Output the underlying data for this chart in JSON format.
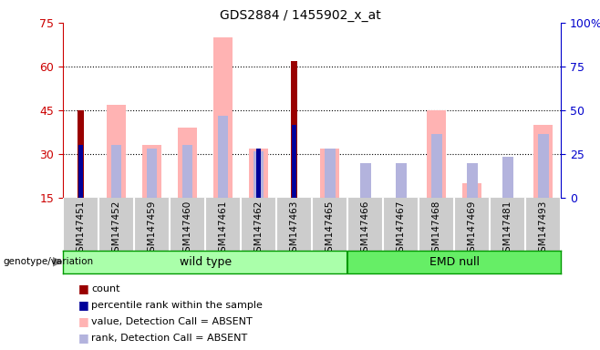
{
  "title": "GDS2884 / 1455902_x_at",
  "samples": [
    "GSM147451",
    "GSM147452",
    "GSM147459",
    "GSM147460",
    "GSM147461",
    "GSM147462",
    "GSM147463",
    "GSM147465",
    "GSM147466",
    "GSM147467",
    "GSM147468",
    "GSM147469",
    "GSM147481",
    "GSM147493"
  ],
  "wild_type_count": 8,
  "emd_null_count": 6,
  "count_values": [
    45,
    0,
    0,
    0,
    0,
    0,
    62,
    0,
    0,
    0,
    0,
    0,
    0,
    0
  ],
  "percentile_rank_values": [
    33,
    0,
    0,
    0,
    0,
    32,
    40,
    0,
    0,
    0,
    0,
    0,
    0,
    0
  ],
  "value_absent_values": [
    0,
    47,
    33,
    39,
    70,
    32,
    0,
    32,
    15,
    0,
    45,
    20,
    0,
    40
  ],
  "rank_absent_values": [
    0,
    33,
    32,
    33,
    43,
    31,
    0,
    32,
    27,
    27,
    37,
    27,
    29,
    37
  ],
  "ymin": 15,
  "ymax": 75,
  "yticks_left": [
    15,
    30,
    45,
    60,
    75
  ],
  "yticks_right_vals": [
    15,
    30,
    45,
    60,
    75
  ],
  "yticks_right_labels": [
    "0",
    "25",
    "50",
    "75",
    "100%"
  ],
  "dotted_lines": [
    30,
    45,
    60
  ],
  "left_tick_color": "#cc0000",
  "right_tick_color": "#0000cc",
  "bar_color_count": "#990000",
  "bar_color_rank": "#000099",
  "bar_color_value_absent": "#ffb3b3",
  "bar_color_rank_absent": "#b3b3dd",
  "group_color_wild": "#aaffaa",
  "group_color_emd": "#66ee66",
  "group_border": "#009900",
  "tick_bg": "#cccccc",
  "cell_border": "#ffffff",
  "legend_colors": [
    "#990000",
    "#000099",
    "#ffb3b3",
    "#b3b3dd"
  ],
  "legend_labels": [
    "count",
    "percentile rank within the sample",
    "value, Detection Call = ABSENT",
    "rank, Detection Call = ABSENT"
  ]
}
